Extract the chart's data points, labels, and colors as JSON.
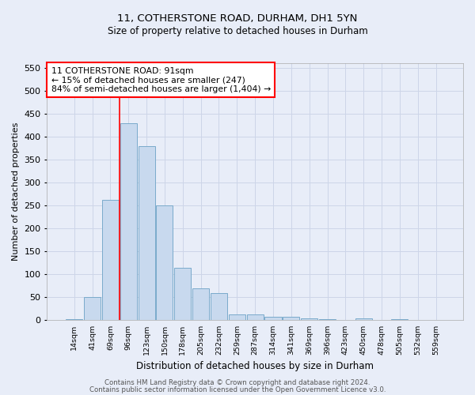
{
  "title_line1": "11, COTHERSTONE ROAD, DURHAM, DH1 5YN",
  "title_line2": "Size of property relative to detached houses in Durham",
  "xlabel": "Distribution of detached houses by size in Durham",
  "ylabel": "Number of detached properties",
  "categories": [
    "14sqm",
    "41sqm",
    "69sqm",
    "96sqm",
    "123sqm",
    "150sqm",
    "178sqm",
    "205sqm",
    "232sqm",
    "259sqm",
    "287sqm",
    "314sqm",
    "341sqm",
    "369sqm",
    "396sqm",
    "423sqm",
    "450sqm",
    "478sqm",
    "505sqm",
    "532sqm",
    "559sqm"
  ],
  "values": [
    2,
    50,
    263,
    430,
    380,
    250,
    115,
    70,
    60,
    13,
    13,
    8,
    7,
    5,
    3,
    1,
    5,
    0,
    2,
    0,
    0
  ],
  "bar_color": "#c8d9ee",
  "bar_edge_color": "#7aaacb",
  "annotation_text": "11 COTHERSTONE ROAD: 91sqm\n← 15% of detached houses are smaller (247)\n84% of semi-detached houses are larger (1,404) →",
  "annotation_box_color": "white",
  "annotation_border_color": "red",
  "ylim": [
    0,
    560
  ],
  "yticks": [
    0,
    50,
    100,
    150,
    200,
    250,
    300,
    350,
    400,
    450,
    500,
    550
  ],
  "grid_color": "#cdd5e8",
  "footer_line1": "Contains HM Land Registry data © Crown copyright and database right 2024.",
  "footer_line2": "Contains public sector information licensed under the Open Government Licence v3.0.",
  "background_color": "#e8edf8",
  "axes_background": "#e8edf8",
  "red_line_bar_index": 2.5,
  "title1_fontsize": 9.5,
  "title2_fontsize": 8.5
}
